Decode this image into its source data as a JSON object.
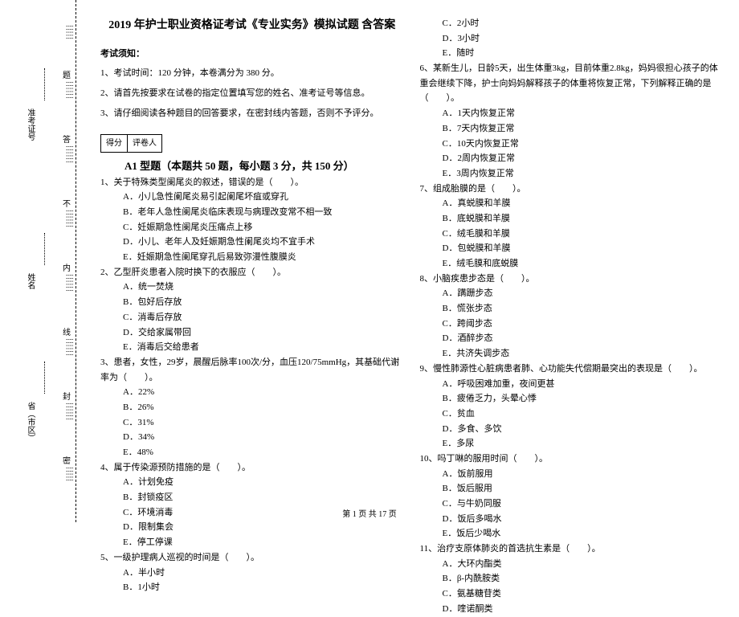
{
  "binding": {
    "province": "省（市区）",
    "name": "姓名",
    "ticket": "准考证号",
    "seal_chars": [
      "密",
      "封",
      "线",
      "内",
      "不",
      "答",
      "题"
    ]
  },
  "title": "2019 年护士职业资格证考试《专业实务》模拟试题 含答案",
  "notice_head": "考试须知：",
  "notices": [
    "1、考试时间：120 分钟，本卷满分为 380 分。",
    "2、请首先按要求在试卷的指定位置填写您的姓名、准考证号等信息。",
    "3、请仔细阅读各种题目的回答要求，在密封线内答题，否则不予评分。"
  ],
  "score_labels": {
    "score": "得分",
    "marker": "评卷人"
  },
  "type_title": "A1 型题（本题共 50 题，每小题 3 分，共 150 分）",
  "left_questions": [
    {
      "stem": "1、关于特殊类型阑尾炎的叙述，错误的是（　　）。",
      "opts": [
        "A．小儿急性阑尾炎易引起阑尾坏疽或穿孔",
        "B．老年人急性阑尾炎临床表现与病理改变常不相一致",
        "C．妊娠期急性阑尾炎压痛点上移",
        "D．小儿、老年人及妊娠期急性阑尾炎均不宜手术",
        "E．妊娠期急性阑尾穿孔后易致弥漫性腹膜炎"
      ]
    },
    {
      "stem": "2、乙型肝炎患者入院时换下的衣服应（　　）。",
      "opts": [
        "A．统一焚烧",
        "B．包好后存放",
        "C．消毒后存放",
        "D．交给家属带回",
        "E．消毒后交给患者"
      ]
    },
    {
      "stem": "3、患者，女性，29岁，晨醒后脉率100次/分，血压120/75mmHg，其基础代谢率为（　　）。",
      "opts": [
        "A．22%",
        "B．26%",
        "C．31%",
        "D．34%",
        "E．48%"
      ]
    },
    {
      "stem": "4、属于传染源预防措施的是（　　）。",
      "opts": [
        "A．计划免疫",
        "B．封锁疫区",
        "C．环境消毒",
        "D．限制集会",
        "E．停工停课"
      ]
    },
    {
      "stem": "5、一级护理病人巡视的时间是（　　）。",
      "opts": [
        "A．半小时",
        "B．1小时"
      ]
    }
  ],
  "right_top_opts": [
    "C．2小时",
    "D．3小时",
    "E．随时"
  ],
  "right_questions": [
    {
      "stem": "6、某新生儿，日龄5天，出生体重3kg，目前体重2.8kg，妈妈很担心孩子的体重会继续下降，护士向妈妈解释孩子的体重将恢复正常，下列解释正确的是（　　）。",
      "opts": [
        "A．1天内恢复正常",
        "B．7天内恢复正常",
        "C．10天内恢复正常",
        "D．2周内恢复正常",
        "E．3周内恢复正常"
      ]
    },
    {
      "stem": "7、组成胎膜的是（　　）。",
      "opts": [
        "A．真蜕膜和羊膜",
        "B．底蜕膜和羊膜",
        "C．绒毛膜和羊膜",
        "D．包蜕膜和羊膜",
        "E．绒毛膜和底蜕膜"
      ]
    },
    {
      "stem": "8、小脑疾患步态是（　　）。",
      "opts": [
        "A．蹒跚步态",
        "B．慌张步态",
        "C．跨阈步态",
        "D．酒醉步态",
        "E．共济失调步态"
      ]
    },
    {
      "stem": "9、慢性肺源性心脏病患者肺、心功能失代偿期最突出的表现是（　　）。",
      "opts": [
        "A．呼吸困难加重，夜间更甚",
        "B．疲倦乏力，头晕心悸",
        "C．贫血",
        "D．多食、多饮",
        "E．多尿"
      ]
    },
    {
      "stem": "10、吗丁啉的服用时间（　　）。",
      "opts": [
        "A．饭前服用",
        "B．饭后服用",
        "C．与牛奶同服",
        "D．饭后多喝水",
        "E．饭后少喝水"
      ]
    },
    {
      "stem": "11、治疗支原体肺炎的首选抗生素是（　　）。",
      "opts": [
        "A．大环内酯类",
        "B．β-内酰胺类",
        "C．氨基糖苷类",
        "D．喹诺酮类"
      ]
    }
  ],
  "footer": "第 1 页 共 17 页"
}
